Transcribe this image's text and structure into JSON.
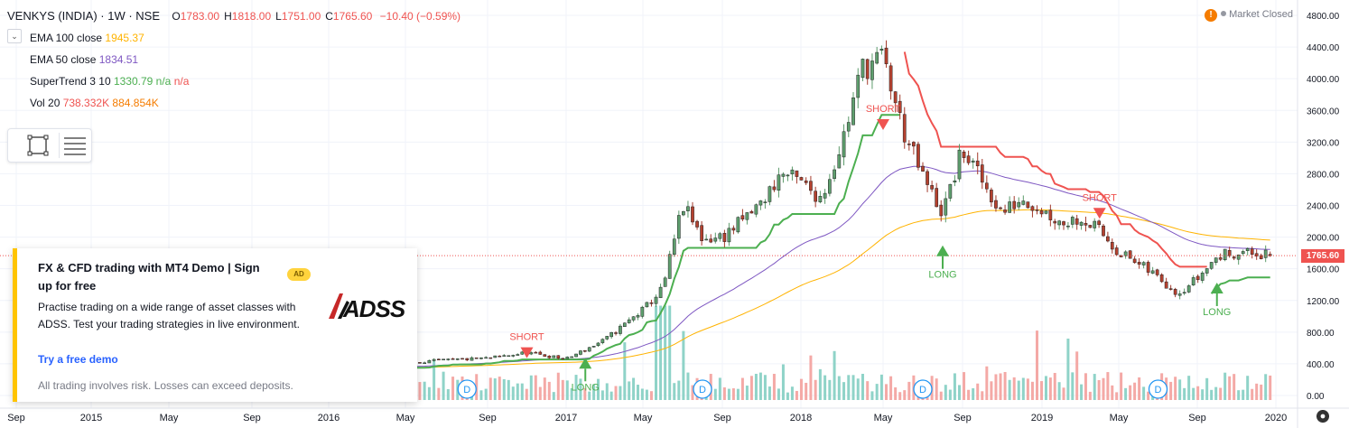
{
  "header": {
    "symbol": "VENKYS (INDIA) · 1W · NSE",
    "ohlc": [
      {
        "k": "O",
        "v": "1783.00"
      },
      {
        "k": "H",
        "v": "1818.00"
      },
      {
        "k": "L",
        "v": "1751.00"
      },
      {
        "k": "C",
        "v": "1765.60"
      }
    ],
    "change": "−10.40 (−0.59%)"
  },
  "indicators": [
    {
      "name": "EMA 100 close",
      "values": [
        "1945.37"
      ],
      "colors": [
        "#ffb300"
      ]
    },
    {
      "name": "EMA 50 close",
      "values": [
        "1834.51"
      ],
      "colors": [
        "#7e57c2"
      ]
    },
    {
      "name": "SuperTrend 3 10",
      "values": [
        "1330.79",
        "n/a",
        "n/a"
      ],
      "colors": [
        "#4caf50",
        "#4caf50",
        "#ef5350"
      ]
    },
    {
      "name": "Vol 20",
      "values": [
        "738.332K",
        "884.854K"
      ],
      "colors": [
        "#ef5350",
        "#f57c00"
      ]
    }
  ],
  "market_status": "Market Closed",
  "ad": {
    "title": "FX & CFD trading with MT4 Demo | Sign up for free",
    "badge": "AD",
    "body": "Practise trading on a wide range of asset classes with ADSS. Test your trading strategies in live environment.",
    "cta": "Try a free demo",
    "disclaimer": "All trading involves risk. Losses can exceed deposits.",
    "logo_text": "ADSS"
  },
  "icons": {
    "collapse": "chevron-down-icon",
    "rect": "rectangle-tool-icon",
    "lines": "horizontal-lines-icon",
    "settings": "gear-icon",
    "warning": "warning-icon"
  },
  "colors": {
    "up": "#26a69a",
    "down": "#ef5350",
    "ema100": "#ffb300",
    "ema50": "#7e57c2",
    "st_up": "#4caf50",
    "st_down": "#ef5350",
    "bg": "#ffffff"
  },
  "chart_data": {
    "type": "candlestick",
    "y_ticks": [
      "0.00",
      "400.00",
      "800.00",
      "1200.00",
      "1600.00",
      "2000.00",
      "2400.00",
      "2800.00",
      "3200.00",
      "3600.00",
      "4000.00",
      "4400.00",
      "4800.00"
    ],
    "ylim": [
      0,
      4800
    ],
    "last_price": "1765.60",
    "x_ticks": [
      "Sep",
      "2015",
      "May",
      "Sep",
      "2016",
      "May",
      "Sep",
      "2017",
      "May",
      "Sep",
      "2018",
      "May",
      "Sep",
      "2019",
      "May",
      "Sep",
      "2020"
    ],
    "x_tick_dates": [
      "2014-09",
      "2015-01",
      "2015-05",
      "2015-09",
      "2016-01",
      "2016-05",
      "2016-09",
      "2017-01",
      "2017-05",
      "2017-09",
      "2018-01",
      "2018-05",
      "2018-09",
      "2019-01",
      "2019-05",
      "2019-09",
      "2020-01"
    ],
    "price_path": [
      [
        "2014-09",
        330
      ],
      [
        "2015-05",
        355
      ],
      [
        "2016-01",
        330
      ],
      [
        "2016-05",
        420
      ],
      [
        "2016-09",
        470
      ],
      [
        "2016-11",
        540
      ],
      [
        "2017-01",
        460
      ],
      [
        "2017-03",
        700
      ],
      [
        "2017-05",
        1080
      ],
      [
        "2017-06",
        1350
      ],
      [
        "2017-07",
        2400
      ],
      [
        "2017-08",
        1980
      ],
      [
        "2017-09",
        2000
      ],
      [
        "2017-10",
        2200
      ],
      [
        "2017-11",
        2430
      ],
      [
        "2017-12",
        2810
      ],
      [
        "2018-01",
        2680
      ],
      [
        "2018-02",
        2500
      ],
      [
        "2018-03",
        3200
      ],
      [
        "2018-04",
        4150
      ],
      [
        "2018-05",
        4250
      ],
      [
        "2018-06",
        3350
      ],
      [
        "2018-07",
        2750
      ],
      [
        "2018-08",
        2300
      ],
      [
        "2018-09",
        3100
      ],
      [
        "2018-10",
        2700
      ],
      [
        "2018-11",
        2300
      ],
      [
        "2018-12",
        2500
      ],
      [
        "2019-01",
        2350
      ],
      [
        "2019-02",
        2180
      ],
      [
        "2019-03",
        2250
      ],
      [
        "2019-04",
        2080
      ],
      [
        "2019-05",
        1820
      ],
      [
        "2019-06",
        1650
      ],
      [
        "2019-07",
        1500
      ],
      [
        "2019-08",
        1300
      ],
      [
        "2019-09",
        1480
      ],
      [
        "2019-10",
        1750
      ],
      [
        "2019-11",
        1820
      ],
      [
        "2019-12",
        1780
      ],
      [
        "2019-12-27",
        1765.6
      ]
    ],
    "signals": [
      {
        "label": "SHORT",
        "date": "2016-11",
        "price": 540
      },
      {
        "label": "LONG",
        "date": "2017-02",
        "price": 430
      },
      {
        "label": "SHORT",
        "date": "2018-05",
        "price": 3420
      },
      {
        "label": "LONG",
        "date": "2018-08",
        "price": 1850
      },
      {
        "label": "SHORT",
        "date": "2019-04",
        "price": 2300
      },
      {
        "label": "LONG",
        "date": "2019-10",
        "price": 1380
      }
    ],
    "dividend_dates": [
      "2016-08",
      "2017-08",
      "2018-07",
      "2019-07"
    ],
    "dividend_label": "D"
  }
}
